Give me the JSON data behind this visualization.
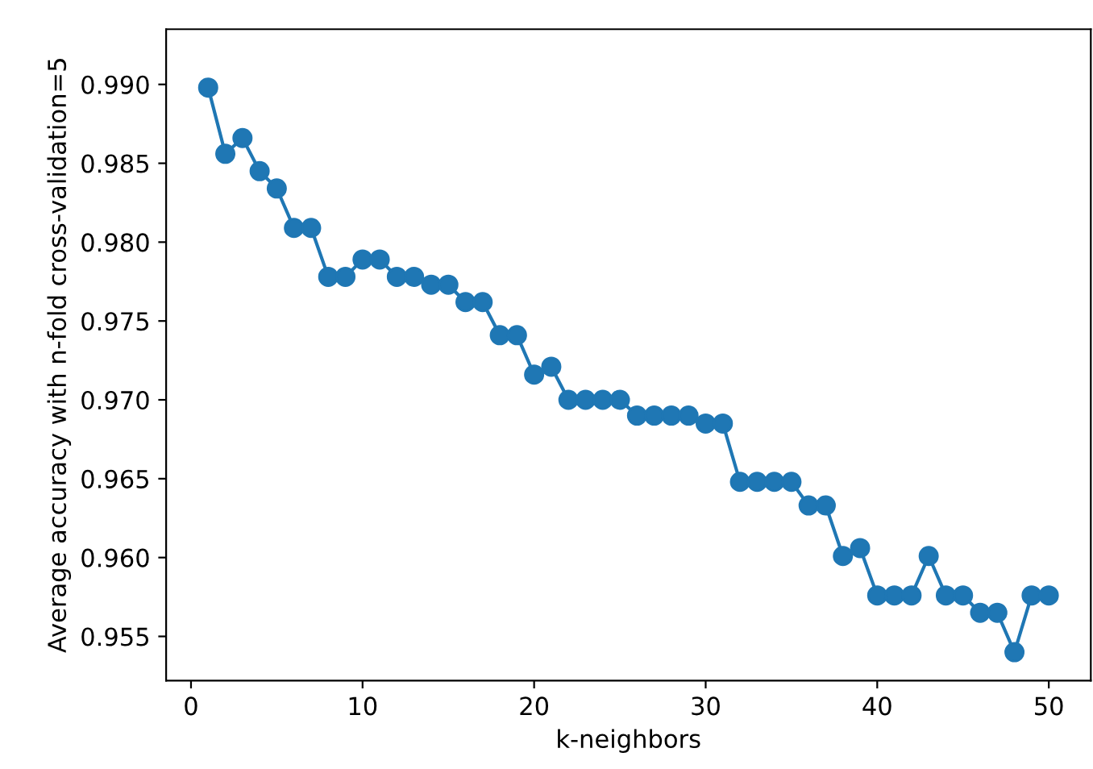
{
  "chart_data": {
    "type": "line",
    "xlabel": "k-neighbors",
    "ylabel": "Average accuracy with n-fold cross-validation=5",
    "x": [
      1,
      2,
      3,
      4,
      5,
      6,
      7,
      8,
      9,
      10,
      11,
      12,
      13,
      14,
      15,
      16,
      17,
      18,
      19,
      20,
      21,
      22,
      23,
      24,
      25,
      26,
      27,
      28,
      29,
      30,
      31,
      32,
      33,
      34,
      35,
      36,
      37,
      38,
      39,
      40,
      41,
      42,
      43,
      44,
      45,
      46,
      47,
      48,
      49,
      50
    ],
    "series": [
      {
        "color": "#1f77b4",
        "values": [
          0.9898,
          0.9856,
          0.9866,
          0.9845,
          0.9834,
          0.9809,
          0.9809,
          0.9778,
          0.9778,
          0.9789,
          0.9789,
          0.9778,
          0.9778,
          0.9773,
          0.9773,
          0.9762,
          0.9762,
          0.9741,
          0.9741,
          0.9716,
          0.9721,
          0.97,
          0.97,
          0.97,
          0.97,
          0.969,
          0.969,
          0.969,
          0.969,
          0.9685,
          0.9685,
          0.9648,
          0.9648,
          0.9648,
          0.9648,
          0.9633,
          0.9633,
          0.9601,
          0.9606,
          0.9576,
          0.9576,
          0.9576,
          0.9601,
          0.9576,
          0.9576,
          0.9565,
          0.9565,
          0.954,
          0.9576,
          0.9576
        ]
      }
    ],
    "xlim": [
      -1.45,
      52.45
    ],
    "xticks": [
      0,
      10,
      20,
      30,
      40,
      50
    ],
    "ylim": [
      0.9522,
      0.9935
    ],
    "yticks": [
      {
        "value": 0.955,
        "label": "0.955"
      },
      {
        "value": 0.96,
        "label": "0.960"
      },
      {
        "value": 0.965,
        "label": "0.965"
      },
      {
        "value": 0.97,
        "label": "0.970"
      },
      {
        "value": 0.975,
        "label": "0.975"
      },
      {
        "value": 0.98,
        "label": "0.980"
      },
      {
        "value": 0.985,
        "label": "0.985"
      },
      {
        "value": 0.99,
        "label": "0.990"
      }
    ],
    "marker": "circle",
    "line_style": "solid",
    "grid": false
  }
}
